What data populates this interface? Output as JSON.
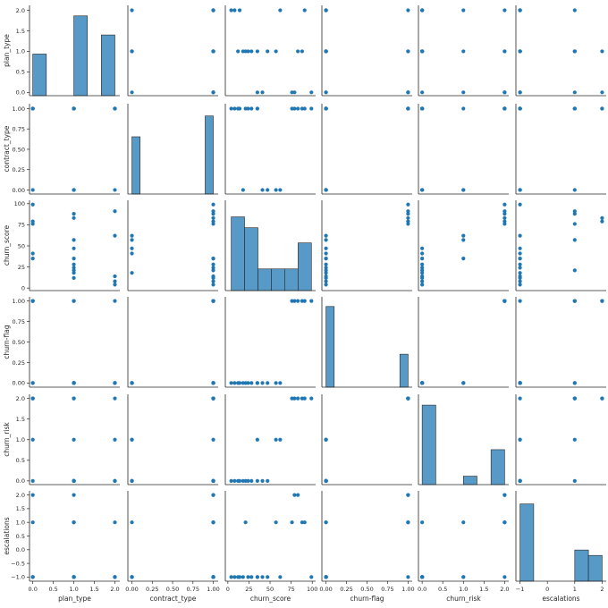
{
  "chart_data": {
    "type": "scatter",
    "subtype": "pairplot",
    "color": "#1f77b4",
    "bar_color": "#5799c7",
    "variables": [
      "plan_type",
      "contract_type",
      "churn_score",
      "churn-flag",
      "churn_risk",
      "escalations"
    ],
    "axis_labels": [
      "plan_type",
      "contract_type",
      "churn_score",
      "churn-flag",
      "churn_risk",
      "escalations"
    ],
    "axes": [
      {
        "min": -0.08,
        "max": 2.12,
        "ticks": [
          0.0,
          0.5,
          1.0,
          1.5,
          2.0
        ],
        "tick_labels": [
          "0.0",
          "0.5",
          "1.0",
          "1.5",
          "2.0"
        ]
      },
      {
        "min": -0.05,
        "max": 1.06,
        "ticks": [
          0.0,
          0.25,
          0.5,
          0.75,
          1.0
        ],
        "tick_labels": [
          "0.00",
          "0.25",
          "0.50",
          "0.75",
          "1.00"
        ]
      },
      {
        "min": -3,
        "max": 104,
        "ticks": [
          0,
          25,
          50,
          75,
          100
        ],
        "tick_labels": [
          "0",
          "25",
          "50",
          "75",
          "100"
        ]
      },
      {
        "min": -0.05,
        "max": 1.05,
        "ticks": [
          0.0,
          0.25,
          0.5,
          0.75,
          1.0
        ],
        "tick_labels": [
          "0.00",
          "0.25",
          "0.50",
          "0.75",
          "1.00"
        ]
      },
      {
        "min": -0.09,
        "max": 2.1,
        "ticks": [
          0.0,
          0.5,
          1.0,
          1.5,
          2.0
        ],
        "tick_labels": [
          "0.0",
          "0.5",
          "1.0",
          "1.5",
          "2.0"
        ]
      },
      {
        "min": -1.15,
        "max": 2.15,
        "ticks": [
          -1.0,
          -0.5,
          0.0,
          0.5,
          1.0,
          1.5,
          2.0
        ],
        "tick_labels": [
          "−1.0",
          "−0.5",
          "0.0",
          "0.5",
          "1.0",
          "1.5",
          "2.0"
        ]
      }
    ],
    "x_axes": [
      {
        "ticks": [
          0.0,
          0.5,
          1.0,
          1.5,
          2.0
        ],
        "tick_labels": [
          "0.0",
          "0.5",
          "1.0",
          "1.5",
          "2.0"
        ]
      },
      {
        "ticks": [
          0.0,
          0.25,
          0.5,
          0.75,
          1.0
        ],
        "tick_labels": [
          "0.00",
          "0.25",
          "0.50",
          "0.75",
          "1.00"
        ]
      },
      {
        "ticks": [
          0,
          25,
          50,
          75,
          100
        ],
        "tick_labels": [
          "0",
          "25",
          "50",
          "75",
          "100"
        ]
      },
      {
        "ticks": [
          0.0,
          0.25,
          0.5,
          0.75,
          1.0
        ],
        "tick_labels": [
          "0.00",
          "0.25",
          "0.50",
          "0.75",
          "1.00"
        ]
      },
      {
        "ticks": [
          0.0,
          0.5,
          1.0,
          1.5,
          2.0
        ],
        "tick_labels": [
          "0.0",
          "0.5",
          "1.0",
          "1.5",
          "2.0"
        ]
      },
      {
        "ticks": [
          -1,
          0,
          1,
          2
        ],
        "tick_labels": [
          "−1",
          "0",
          "1",
          "2"
        ]
      }
    ],
    "records": [
      {
        "plan_type": 0,
        "contract_type": 1,
        "churn_score": 99,
        "churn-flag": 1,
        "churn_risk": 2,
        "escalations": -1
      },
      {
        "plan_type": 0,
        "contract_type": 1,
        "churn_score": 79,
        "churn-flag": 1,
        "churn_risk": 2,
        "escalations": 2
      },
      {
        "plan_type": 0,
        "contract_type": 1,
        "churn_score": 76,
        "churn-flag": 1,
        "churn_risk": 2,
        "escalations": 1
      },
      {
        "plan_type": 0,
        "contract_type": 0,
        "churn_score": 41,
        "churn-flag": 0,
        "churn_risk": 0,
        "escalations": -1
      },
      {
        "plan_type": 0,
        "contract_type": 1,
        "churn_score": 35,
        "churn-flag": 0,
        "churn_risk": 1,
        "escalations": -1
      },
      {
        "plan_type": 1,
        "contract_type": 1,
        "churn_score": 88,
        "churn-flag": 1,
        "churn_risk": 2,
        "escalations": 1
      },
      {
        "plan_type": 1,
        "contract_type": 1,
        "churn_score": 83,
        "churn-flag": 1,
        "churn_risk": 2,
        "escalations": 2
      },
      {
        "plan_type": 1,
        "contract_type": 0,
        "churn_score": 57,
        "churn-flag": 0,
        "churn_risk": 1,
        "escalations": 1
      },
      {
        "plan_type": 1,
        "contract_type": 0,
        "churn_score": 47,
        "churn-flag": 0,
        "churn_risk": 0,
        "escalations": -1
      },
      {
        "plan_type": 1,
        "contract_type": 1,
        "churn_score": 35,
        "churn-flag": 0,
        "churn_risk": 0,
        "escalations": -1
      },
      {
        "plan_type": 1,
        "contract_type": 1,
        "churn_score": 28,
        "churn-flag": 0,
        "churn_risk": 0,
        "escalations": -1
      },
      {
        "plan_type": 1,
        "contract_type": 1,
        "churn_score": 24,
        "churn-flag": 0,
        "churn_risk": 0,
        "escalations": -1
      },
      {
        "plan_type": 1,
        "contract_type": 1,
        "churn_score": 21,
        "churn-flag": 0,
        "churn_risk": 0,
        "escalations": 1
      },
      {
        "plan_type": 1,
        "contract_type": 0,
        "churn_score": 18,
        "churn-flag": 0,
        "churn_risk": 0,
        "escalations": -1
      },
      {
        "plan_type": 1,
        "contract_type": 1,
        "churn_score": 12,
        "churn-flag": 0,
        "churn_risk": 0,
        "escalations": -1
      },
      {
        "plan_type": 2,
        "contract_type": 1,
        "churn_score": 91,
        "churn-flag": 1,
        "churn_risk": 2,
        "escalations": 1
      },
      {
        "plan_type": 2,
        "contract_type": 0,
        "churn_score": 62,
        "churn-flag": 0,
        "churn_risk": 1,
        "escalations": -1
      },
      {
        "plan_type": 2,
        "contract_type": 1,
        "churn_score": 14,
        "churn-flag": 0,
        "churn_risk": 0,
        "escalations": -1
      },
      {
        "plan_type": 2,
        "contract_type": 1,
        "churn_score": 8,
        "churn-flag": 0,
        "churn_risk": 0,
        "escalations": -1
      },
      {
        "plan_type": 2,
        "contract_type": 1,
        "churn_score": 4,
        "churn-flag": 0,
        "churn_risk": 0,
        "escalations": -1
      }
    ],
    "histograms": [
      {
        "variable": "plan_type",
        "bins": [
          [
            0.0,
            0.33,
            0.24
          ],
          [
            0.33,
            0.67,
            0.0
          ],
          [
            0.67,
            1.0,
            0.0
          ],
          [
            1.0,
            1.33,
            0.46
          ],
          [
            1.33,
            1.67,
            0.0
          ],
          [
            1.67,
            2.0,
            0.35
          ]
        ],
        "ymax": 0.5
      },
      {
        "variable": "contract_type",
        "bins": [
          [
            0.0,
            0.1,
            0.66
          ],
          [
            0.1,
            0.9,
            0.0
          ],
          [
            0.9,
            1.0,
            0.9
          ]
        ],
        "ymax": 1.0
      },
      {
        "variable": "churn_score",
        "bins": [
          [
            4,
            19.8,
            0.34
          ],
          [
            19.8,
            35.7,
            0.29
          ],
          [
            35.7,
            51.5,
            0.1
          ],
          [
            51.5,
            67.3,
            0.1
          ],
          [
            67.3,
            83.2,
            0.1
          ],
          [
            83.2,
            99,
            0.22
          ]
        ],
        "ymax": 0.4
      },
      {
        "variable": "churn-flag",
        "bins": [
          [
            0.0,
            0.1,
            0.93
          ],
          [
            0.1,
            0.9,
            0.0
          ],
          [
            0.9,
            1.0,
            0.38
          ]
        ],
        "ymax": 1.0
      },
      {
        "variable": "churn_risk",
        "bins": [
          [
            0.0,
            0.33,
            0.66
          ],
          [
            0.33,
            1.0,
            0.0
          ],
          [
            1.0,
            1.33,
            0.07
          ],
          [
            1.33,
            1.67,
            0.0
          ],
          [
            1.67,
            2.0,
            0.29
          ]
        ],
        "ymax": 0.72
      },
      {
        "variable": "escalations",
        "bins": [
          [
            -1.0,
            -0.5,
            0.57
          ],
          [
            -0.5,
            1.0,
            0.0
          ],
          [
            1.0,
            1.5,
            0.23
          ],
          [
            1.5,
            2.0,
            0.19
          ]
        ],
        "ymax": 0.64
      }
    ]
  }
}
